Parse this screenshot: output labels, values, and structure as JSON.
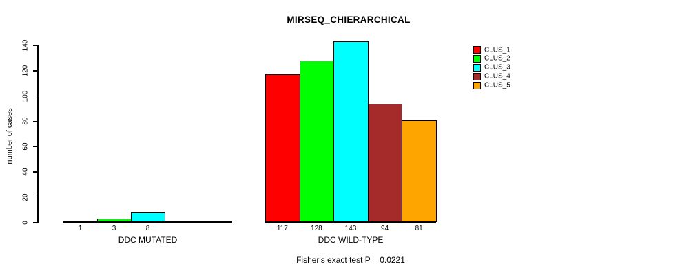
{
  "chart_data": {
    "type": "bar",
    "title": "MIRSEQ_CHIERARCHICAL",
    "ylabel": "number of cases",
    "xlabel": "",
    "ylim": [
      0,
      140
    ],
    "yticks": [
      0,
      20,
      40,
      60,
      80,
      100,
      120,
      140
    ],
    "grid": false,
    "background_color": "#ffffff",
    "bar_border_color": "#000000",
    "legend": {
      "position": "top-right",
      "entries": [
        {
          "label": "CLUS_1",
          "color": "#FF0000"
        },
        {
          "label": "CLUS_2",
          "color": "#00FF00"
        },
        {
          "label": "CLUS_3",
          "color": "#00FFFF"
        },
        {
          "label": "CLUS_4",
          "color": "#A52A2A"
        },
        {
          "label": "CLUS_5",
          "color": "#FFA500"
        }
      ]
    },
    "groups": [
      {
        "label": "DDC MUTATED",
        "slots": 5,
        "bars": [
          {
            "cluster": "CLUS_1",
            "value": 1,
            "label": "1",
            "color": "#FF0000"
          },
          {
            "cluster": "CLUS_2",
            "value": 3,
            "label": "3",
            "color": "#00FF00"
          },
          {
            "cluster": "CLUS_3",
            "value": 8,
            "label": "8",
            "color": "#00FFFF"
          }
        ]
      },
      {
        "label": "DDC WILD-TYPE",
        "slots": 5,
        "bars": [
          {
            "cluster": "CLUS_1",
            "value": 117,
            "label": "117",
            "color": "#FF0000"
          },
          {
            "cluster": "CLUS_2",
            "value": 128,
            "label": "128",
            "color": "#00FF00"
          },
          {
            "cluster": "CLUS_3",
            "value": 143,
            "label": "143",
            "color": "#00FFFF"
          },
          {
            "cluster": "CLUS_4",
            "value": 94,
            "label": "94",
            "color": "#A52A2A"
          },
          {
            "cluster": "CLUS_5",
            "value": 81,
            "label": "81",
            "color": "#FFA500"
          }
        ]
      }
    ],
    "annotation": "Fisher's exact test P = 0.0221"
  }
}
